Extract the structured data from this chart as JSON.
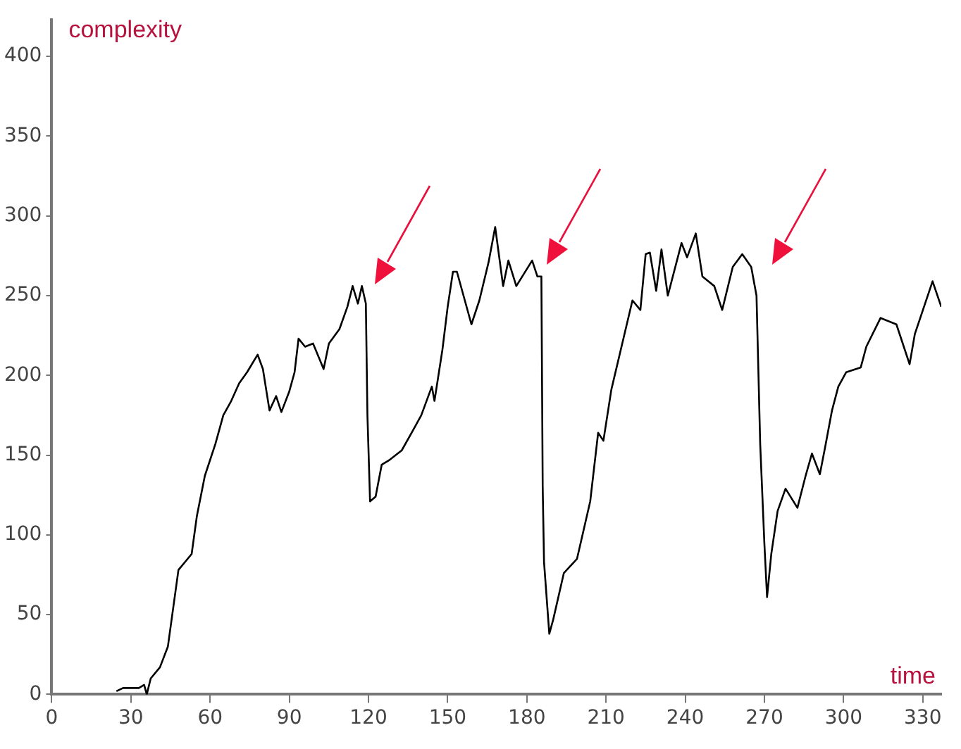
{
  "chart_data": {
    "type": "line",
    "xlabel": "time",
    "ylabel": "complexity",
    "grid": false,
    "legend": false,
    "marker": "none",
    "line_style": "solid",
    "xlim": [
      0,
      337
    ],
    "ylim": [
      0,
      423
    ],
    "xticks": [
      0,
      30,
      60,
      90,
      120,
      150,
      180,
      210,
      240,
      270,
      300,
      330
    ],
    "yticks": [
      0,
      50,
      100,
      150,
      200,
      250,
      300,
      350,
      400
    ],
    "series": [
      {
        "color": "#000000",
        "x": [
          24.5,
          27,
          33,
          35,
          36,
          37.5,
          41,
          44,
          48,
          53,
          55,
          58,
          62,
          65,
          68,
          71,
          74,
          78,
          80,
          82.5,
          85,
          87,
          90,
          92,
          93.5,
          96,
          99,
          103,
          105,
          109,
          112,
          114,
          116,
          117.5,
          119,
          119.6,
          120.6,
          122.7,
          125,
          128,
          132.6,
          137,
          140,
          144,
          145,
          148,
          150,
          152,
          153.5,
          159,
          162,
          165.5,
          168,
          171,
          173,
          176,
          182,
          184,
          185.5,
          186,
          186.5,
          188.5,
          190,
          194,
          199,
          204,
          207,
          209,
          212,
          220,
          223,
          225,
          226.6,
          229,
          231,
          233.4,
          238.6,
          240.7,
          244,
          246.5,
          251,
          254,
          258,
          261.6,
          265,
          267,
          268.4,
          270,
          271,
          272.6,
          275,
          278,
          282.5,
          285.6,
          288,
          291,
          293,
          295.6,
          298,
          301,
          306.5,
          308.6,
          314,
          320,
          325,
          327,
          333.7,
          337
        ],
        "values": [
          2,
          4,
          4,
          6,
          0,
          10,
          17,
          30,
          78,
          88,
          112,
          137,
          157,
          175,
          184,
          195,
          202,
          213,
          204,
          178,
          187,
          177,
          190,
          202,
          223,
          218,
          220,
          204,
          220,
          229,
          243,
          256,
          245,
          256,
          245,
          175,
          121,
          124,
          144,
          147,
          153,
          166,
          175,
          193,
          184,
          216,
          243,
          265,
          265,
          232,
          247,
          271,
          293,
          256,
          272,
          256,
          272,
          262,
          262,
          130,
          83,
          38,
          47,
          76,
          85,
          121,
          164,
          159,
          191,
          247,
          241,
          276,
          277,
          253,
          279,
          250,
          283,
          274,
          289,
          262,
          256,
          241,
          268,
          276,
          268,
          250,
          157,
          94,
          61,
          88,
          115,
          129,
          117,
          137,
          151,
          138,
          155,
          178,
          193,
          202,
          205,
          218,
          236,
          232,
          207,
          226,
          259,
          243
        ]
      }
    ]
  }
}
